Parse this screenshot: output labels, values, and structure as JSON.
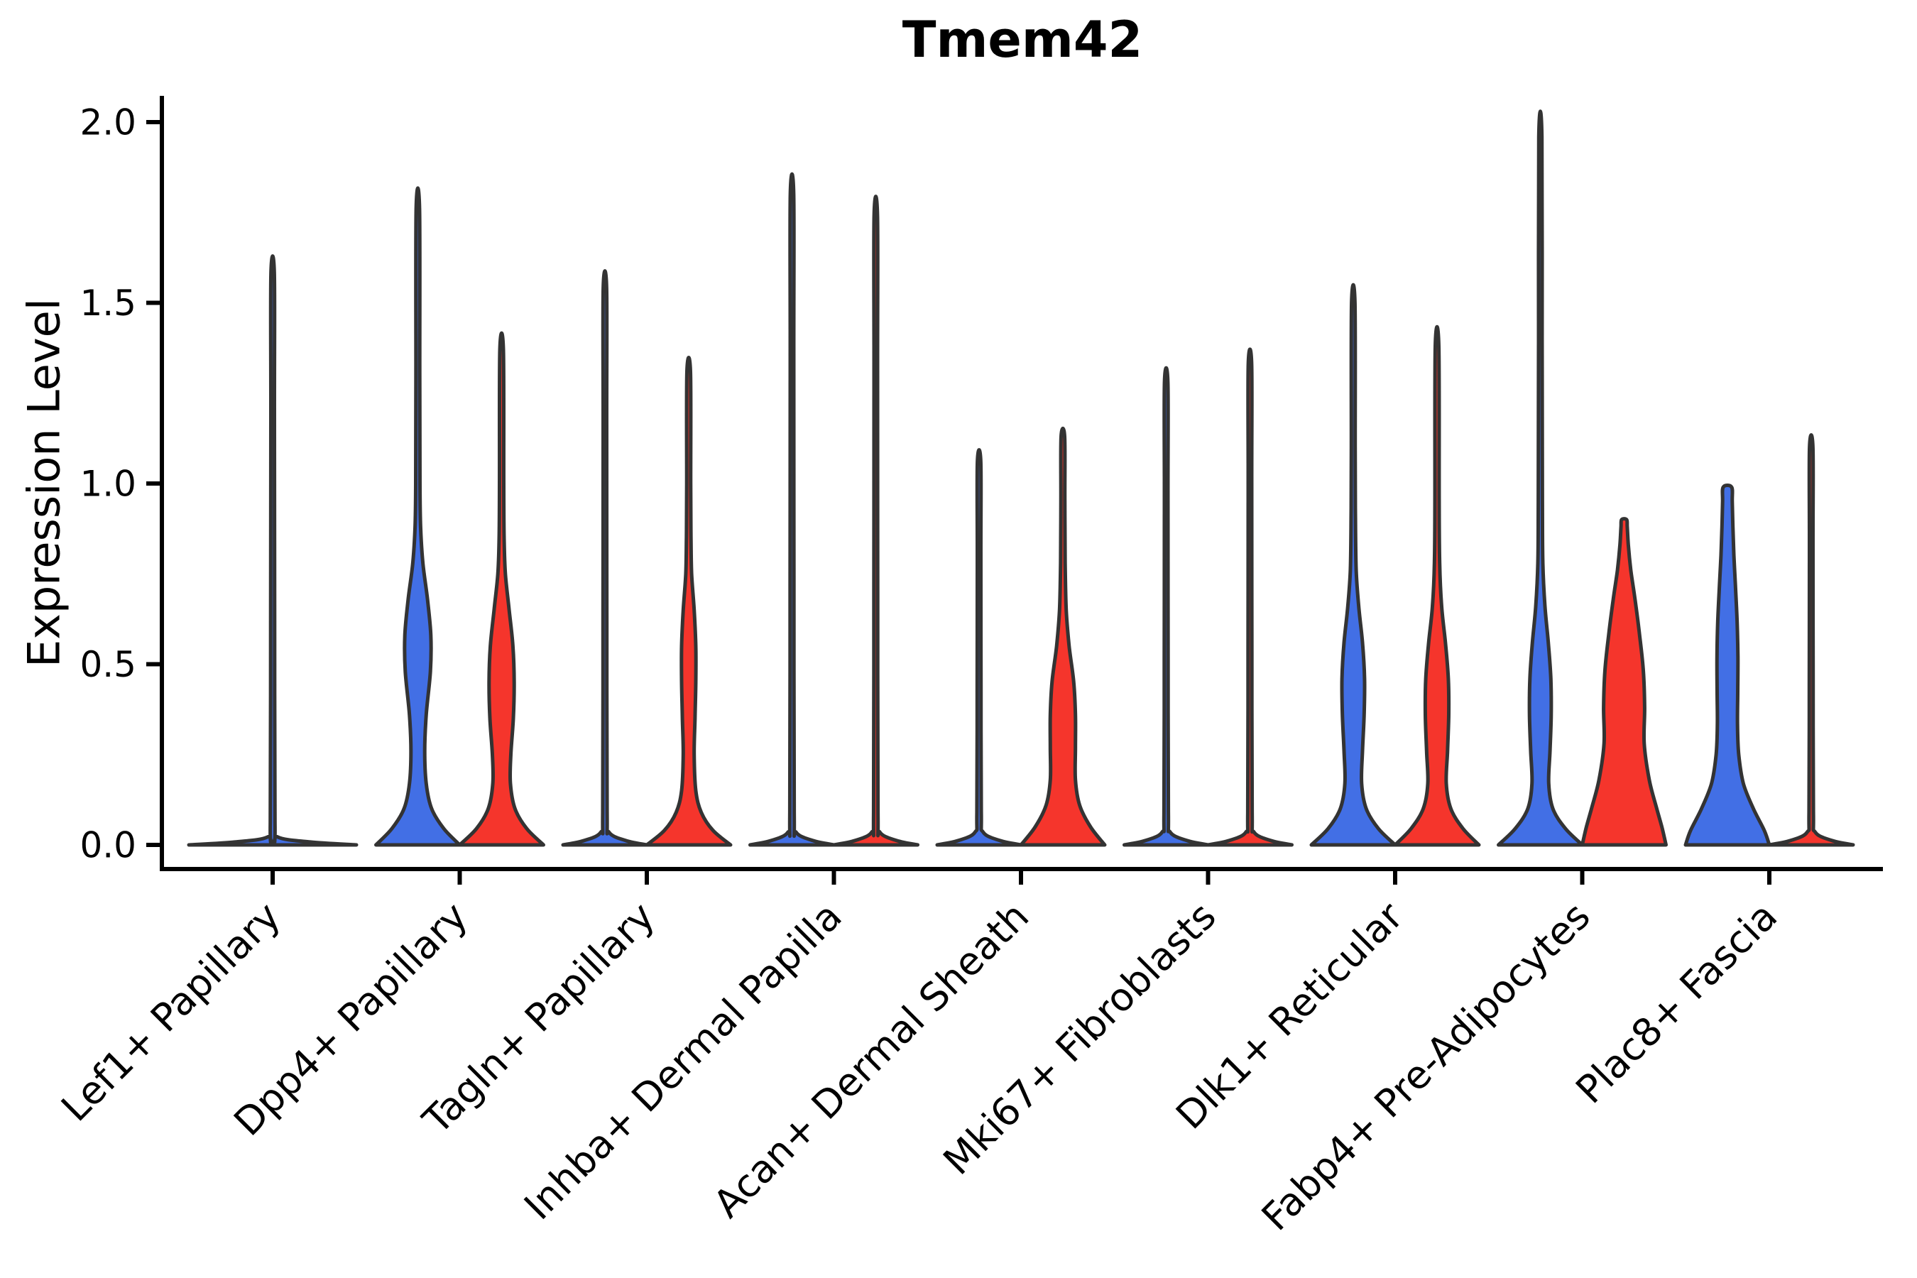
{
  "title": "Tmem42",
  "chart_data": {
    "type": "violin",
    "title": "Tmem42",
    "xlabel": "",
    "ylabel": "Expression Level",
    "ylim": [
      0.0,
      2.0
    ],
    "yticks": [
      0.0,
      0.5,
      1.0,
      1.5,
      2.0
    ],
    "ytick_labels": [
      "0.0",
      "0.5",
      "1.0",
      "1.5",
      "2.0"
    ],
    "grid": false,
    "legend_position": "none",
    "categories": [
      "Lef1+ Papillary",
      "Dpp4+ Papillary",
      "Tagln+ Papillary",
      "Inhba+ Dermal Papilla",
      "Acan+ Dermal Sheath",
      "Mki67+ Fibroblasts",
      "Dlk1+ Reticular",
      "Fabp4+ Pre-Adipocytes",
      "Plac8+ Fascia"
    ],
    "conditions": [
      {
        "key": "blue",
        "color": "#426FE5"
      },
      {
        "key": "red",
        "color": "#F5352C"
      }
    ],
    "outline_color": "#333333",
    "violins": [
      {
        "category_index": 0,
        "position": "center",
        "condition": "blue",
        "shape": "flat-spike",
        "max_expression": 1.58
      },
      {
        "category_index": 1,
        "position": "left",
        "condition": "blue",
        "shape": "density",
        "max_expression": 1.76,
        "profile": [
          [
            0,
            1.0
          ],
          [
            0.045,
            0.62
          ],
          [
            0.1,
            0.33
          ],
          [
            0.17,
            0.2
          ],
          [
            0.26,
            0.165
          ],
          [
            0.36,
            0.2
          ],
          [
            0.48,
            0.3
          ],
          [
            0.58,
            0.31
          ],
          [
            0.68,
            0.23
          ],
          [
            0.78,
            0.12
          ],
          [
            0.88,
            0.066
          ],
          [
            1.0,
            0.05
          ],
          [
            1.3,
            0.045
          ],
          [
            1.76,
            0.04
          ]
        ]
      },
      {
        "category_index": 1,
        "position": "right",
        "condition": "red",
        "shape": "density",
        "max_expression": 1.37,
        "profile": [
          [
            0,
            1.0
          ],
          [
            0.045,
            0.6
          ],
          [
            0.1,
            0.32
          ],
          [
            0.17,
            0.21
          ],
          [
            0.25,
            0.22
          ],
          [
            0.35,
            0.28
          ],
          [
            0.45,
            0.3
          ],
          [
            0.55,
            0.27
          ],
          [
            0.65,
            0.18
          ],
          [
            0.75,
            0.09
          ],
          [
            0.85,
            0.06
          ],
          [
            1.0,
            0.05
          ],
          [
            1.37,
            0.042
          ]
        ]
      },
      {
        "category_index": 2,
        "position": "left",
        "condition": "blue",
        "shape": "flat-spike",
        "max_expression": 1.54
      },
      {
        "category_index": 2,
        "position": "right",
        "condition": "red",
        "shape": "density",
        "max_expression": 1.31,
        "profile": [
          [
            0,
            1.0
          ],
          [
            0.04,
            0.58
          ],
          [
            0.09,
            0.3
          ],
          [
            0.15,
            0.17
          ],
          [
            0.25,
            0.13
          ],
          [
            0.35,
            0.15
          ],
          [
            0.45,
            0.17
          ],
          [
            0.55,
            0.17
          ],
          [
            0.65,
            0.13
          ],
          [
            0.75,
            0.07
          ],
          [
            0.85,
            0.055
          ],
          [
            1.0,
            0.048
          ],
          [
            1.31,
            0.042
          ]
        ]
      },
      {
        "category_index": 3,
        "position": "left",
        "condition": "blue",
        "shape": "flat-spike",
        "max_expression": 1.8
      },
      {
        "category_index": 3,
        "position": "right",
        "condition": "red",
        "shape": "flat-spike",
        "max_expression": 1.74
      },
      {
        "category_index": 4,
        "position": "left",
        "condition": "blue",
        "shape": "flat-spike",
        "max_expression": 1.06
      },
      {
        "category_index": 4,
        "position": "right",
        "condition": "red",
        "shape": "density",
        "max_expression": 1.13,
        "profile": [
          [
            0,
            1.0
          ],
          [
            0.05,
            0.66
          ],
          [
            0.11,
            0.4
          ],
          [
            0.18,
            0.3
          ],
          [
            0.27,
            0.3
          ],
          [
            0.36,
            0.3
          ],
          [
            0.45,
            0.26
          ],
          [
            0.55,
            0.15
          ],
          [
            0.65,
            0.08
          ],
          [
            0.78,
            0.055
          ],
          [
            0.95,
            0.047
          ],
          [
            1.13,
            0.042
          ]
        ]
      },
      {
        "category_index": 5,
        "position": "left",
        "condition": "blue",
        "shape": "flat-spike",
        "max_expression": 1.28
      },
      {
        "category_index": 5,
        "position": "right",
        "condition": "red",
        "shape": "flat-spike",
        "max_expression": 1.33
      },
      {
        "category_index": 6,
        "position": "left",
        "condition": "blue",
        "shape": "density",
        "max_expression": 1.5,
        "profile": [
          [
            0,
            1.0
          ],
          [
            0.045,
            0.6
          ],
          [
            0.1,
            0.31
          ],
          [
            0.17,
            0.2
          ],
          [
            0.26,
            0.22
          ],
          [
            0.36,
            0.26
          ],
          [
            0.46,
            0.27
          ],
          [
            0.56,
            0.22
          ],
          [
            0.66,
            0.13
          ],
          [
            0.76,
            0.07
          ],
          [
            0.9,
            0.052
          ],
          [
            1.1,
            0.046
          ],
          [
            1.5,
            0.04
          ]
        ]
      },
      {
        "category_index": 6,
        "position": "right",
        "condition": "red",
        "shape": "density",
        "max_expression": 1.38,
        "profile": [
          [
            0,
            1.0
          ],
          [
            0.045,
            0.62
          ],
          [
            0.1,
            0.33
          ],
          [
            0.17,
            0.22
          ],
          [
            0.26,
            0.25
          ],
          [
            0.36,
            0.28
          ],
          [
            0.46,
            0.27
          ],
          [
            0.56,
            0.2
          ],
          [
            0.66,
            0.11
          ],
          [
            0.78,
            0.062
          ],
          [
            0.95,
            0.05
          ],
          [
            1.38,
            0.042
          ]
        ]
      },
      {
        "category_index": 7,
        "position": "left",
        "condition": "blue",
        "shape": "density",
        "max_expression": 1.96,
        "profile": [
          [
            0,
            1.0
          ],
          [
            0.045,
            0.6
          ],
          [
            0.1,
            0.3
          ],
          [
            0.17,
            0.2
          ],
          [
            0.26,
            0.23
          ],
          [
            0.36,
            0.26
          ],
          [
            0.46,
            0.25
          ],
          [
            0.56,
            0.19
          ],
          [
            0.66,
            0.11
          ],
          [
            0.78,
            0.06
          ],
          [
            0.95,
            0.05
          ],
          [
            1.4,
            0.043
          ],
          [
            1.96,
            0.038
          ]
        ]
      },
      {
        "category_index": 7,
        "position": "right",
        "condition": "red",
        "shape": "density",
        "max_expression": 0.9,
        "profile": [
          [
            0,
            1.0
          ],
          [
            0.05,
            0.9
          ],
          [
            0.1,
            0.78
          ],
          [
            0.18,
            0.6
          ],
          [
            0.28,
            0.48
          ],
          [
            0.38,
            0.49
          ],
          [
            0.48,
            0.46
          ],
          [
            0.58,
            0.37
          ],
          [
            0.68,
            0.26
          ],
          [
            0.76,
            0.16
          ],
          [
            0.83,
            0.1
          ],
          [
            0.88,
            0.075
          ],
          [
            0.9,
            0.06
          ]
        ]
      },
      {
        "category_index": 8,
        "position": "left",
        "condition": "blue",
        "shape": "density",
        "max_expression": 0.99,
        "profile": [
          [
            0,
            1.0
          ],
          [
            0.04,
            0.88
          ],
          [
            0.1,
            0.62
          ],
          [
            0.17,
            0.38
          ],
          [
            0.25,
            0.27
          ],
          [
            0.33,
            0.24
          ],
          [
            0.42,
            0.245
          ],
          [
            0.52,
            0.25
          ],
          [
            0.62,
            0.23
          ],
          [
            0.72,
            0.19
          ],
          [
            0.8,
            0.155
          ],
          [
            0.88,
            0.13
          ],
          [
            0.95,
            0.115
          ],
          [
            0.99,
            0.1
          ]
        ]
      },
      {
        "category_index": 8,
        "position": "right",
        "condition": "red",
        "shape": "flat-spike",
        "max_expression": 1.1
      }
    ]
  }
}
